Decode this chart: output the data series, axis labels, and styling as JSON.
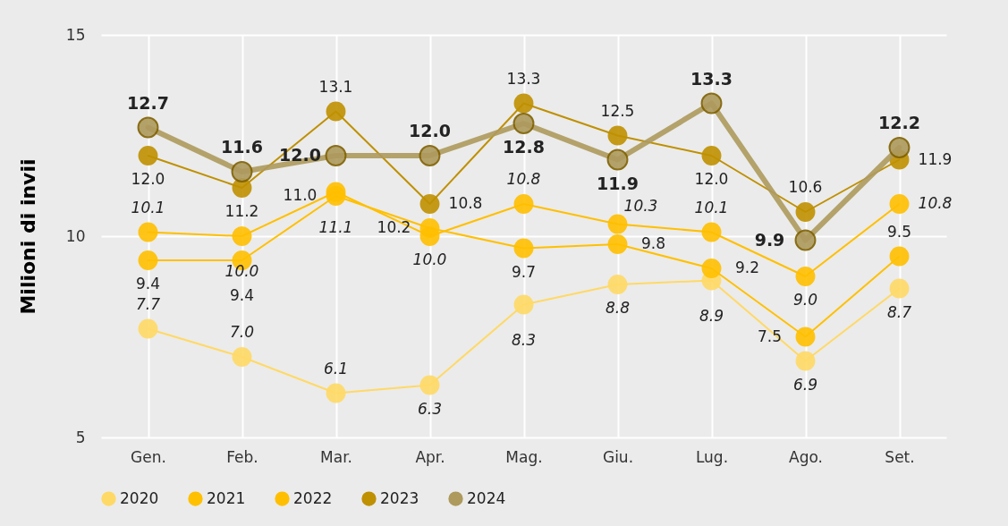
{
  "chart_data": {
    "type": "line",
    "ylabel": "Milioni di invii",
    "categories": [
      "Gen.",
      "Feb.",
      "Mar.",
      "Apr.",
      "Mag.",
      "Giu.",
      "Lug.",
      "Ago.",
      "Set."
    ],
    "ylim": [
      5,
      15
    ],
    "yticks": [
      5,
      10,
      15
    ],
    "grid": true,
    "legend": "bottom",
    "marker": "circle",
    "series": [
      {
        "name": "2020",
        "color": "#ffd966",
        "values": [
          7.7,
          7.0,
          6.1,
          6.3,
          8.3,
          8.8,
          8.9,
          6.9,
          8.7
        ],
        "value_labels": [
          "7.7",
          "7.0",
          "6.1",
          "6.3",
          "8.3",
          "8.8",
          "8.9",
          "6.9",
          "8.7"
        ]
      },
      {
        "name": "2021",
        "color": "#ffc000",
        "values": [
          9.4,
          9.4,
          11.0,
          10.2,
          9.7,
          9.8,
          9.2,
          7.5,
          9.5
        ],
        "value_labels": [
          "9.4",
          "9.4",
          "11.0",
          "10.2",
          "9.7",
          "9.8",
          "9.2",
          "7.5",
          "9.5"
        ]
      },
      {
        "name": "2022",
        "color": "#ffbf00",
        "values": [
          10.1,
          10.0,
          11.1,
          10.0,
          10.8,
          10.3,
          10.1,
          9.0,
          10.8
        ],
        "value_labels": [
          "10.1",
          "10.0",
          "11.1",
          "10.0",
          "10.8",
          "10.3",
          "10.1",
          "9.0",
          "10.8"
        ]
      },
      {
        "name": "2023",
        "color": "#bf9000",
        "values": [
          12.0,
          11.2,
          13.1,
          10.8,
          13.3,
          12.5,
          12.0,
          10.6,
          11.9
        ],
        "value_labels": [
          "12.0",
          "11.2",
          "13.1",
          "10.8",
          "13.3",
          "12.5",
          "12.0",
          "10.6",
          "11.9"
        ]
      },
      {
        "name": "2024",
        "color": "#ae9a5d",
        "values": [
          12.7,
          11.6,
          12.0,
          12.0,
          12.8,
          11.9,
          13.3,
          9.9,
          12.2
        ],
        "value_labels": [
          "12.7",
          "11.6",
          "12.0",
          "12.0",
          "12.8",
          "11.9",
          "13.3",
          "9.9",
          "12.2"
        ]
      }
    ]
  }
}
